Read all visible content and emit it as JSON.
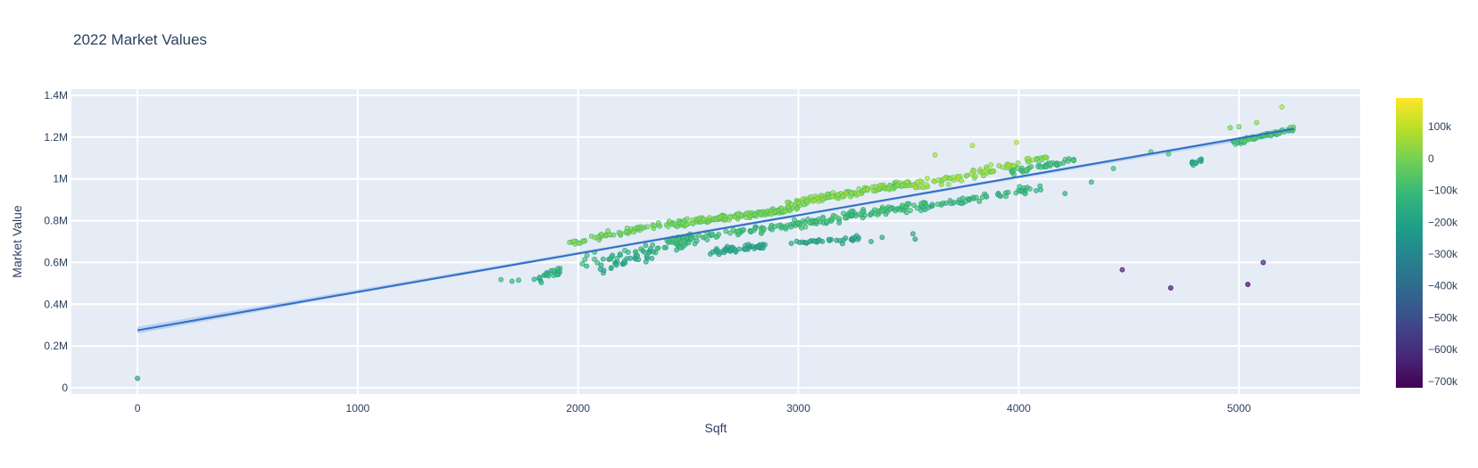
{
  "chart_data": {
    "type": "scatter",
    "title": "2022 Market Values",
    "xlabel": "Sqft",
    "ylabel": "Market Value",
    "xlim": [
      -300,
      5550
    ],
    "ylim": [
      -30000,
      1430000
    ],
    "x_ticks": [
      {
        "value": 0,
        "label": "0"
      },
      {
        "value": 1000,
        "label": "1000"
      },
      {
        "value": 2000,
        "label": "2000"
      },
      {
        "value": 3000,
        "label": "3000"
      },
      {
        "value": 4000,
        "label": "4000"
      },
      {
        "value": 5000,
        "label": "5000"
      }
    ],
    "y_ticks": [
      {
        "value": 0,
        "label": "0"
      },
      {
        "value": 200000,
        "label": "0.2M"
      },
      {
        "value": 400000,
        "label": "0.4M"
      },
      {
        "value": 600000,
        "label": "0.6M"
      },
      {
        "value": 800000,
        "label": "0.8M"
      },
      {
        "value": 1000000,
        "label": "1M"
      },
      {
        "value": 1200000,
        "label": "1.2M"
      },
      {
        "value": 1400000,
        "label": "1.4M"
      }
    ],
    "grid": true,
    "colorscale": "Viridis",
    "colorscale_stops": [
      "#440154",
      "#482878",
      "#3e4989",
      "#31688e",
      "#26828e",
      "#1f9e89",
      "#35b779",
      "#6ece58",
      "#b5de2b",
      "#fde725"
    ],
    "color_range": [
      -720000,
      190000
    ],
    "colorbar_ticks": [
      {
        "value": 100000,
        "label": "100k"
      },
      {
        "value": 0,
        "label": "0"
      },
      {
        "value": -100000,
        "label": "−100k"
      },
      {
        "value": -200000,
        "label": "−200k"
      },
      {
        "value": -300000,
        "label": "−300k"
      },
      {
        "value": -400000,
        "label": "−400k"
      },
      {
        "value": -500000,
        "label": "−500k"
      },
      {
        "value": -600000,
        "label": "−600k"
      },
      {
        "value": -700000,
        "label": "−700k"
      }
    ],
    "trendline": {
      "color": "#2f6fc4",
      "band_color": "#aec7ee",
      "x": [
        0,
        5250
      ],
      "y": [
        275000,
        1240000
      ],
      "band": [
        [
          0,
          260000,
          292000
        ],
        [
          1000,
          452000,
          470000
        ],
        [
          2000,
          637000,
          651000
        ],
        [
          3000,
          820000,
          832000
        ],
        [
          4000,
          1002000,
          1016000
        ],
        [
          5000,
          1180000,
          1200000
        ],
        [
          5250,
          1224000,
          1256000
        ]
      ]
    },
    "points": [
      {
        "x": 0,
        "y": 45000,
        "c": -160000
      },
      {
        "x": 4470,
        "y": 565000,
        "c": -590000
      },
      {
        "x": 4690,
        "y": 478000,
        "c": -650000
      },
      {
        "x": 5040,
        "y": 495000,
        "c": -690000
      },
      {
        "x": 5110,
        "y": 600000,
        "c": -600000
      },
      {
        "x": 5195,
        "y": 1345000,
        "c": 110000
      },
      {
        "x": 5080,
        "y": 1270000,
        "c": 60000
      },
      {
        "x": 4960,
        "y": 1245000,
        "c": 30000
      },
      {
        "x": 5000,
        "y": 1250000,
        "c": 40000
      },
      {
        "x": 3790,
        "y": 1160000,
        "c": 110000
      },
      {
        "x": 3990,
        "y": 1175000,
        "c": 120000
      },
      {
        "x": 3620,
        "y": 1115000,
        "c": 100000
      },
      {
        "x": 1650,
        "y": 518000,
        "c": -80000
      },
      {
        "x": 1700,
        "y": 510000,
        "c": -90000
      },
      {
        "x": 1730,
        "y": 515000,
        "c": -85000
      },
      {
        "x": 3520,
        "y": 737000,
        "c": -140000
      },
      {
        "x": 3530,
        "y": 712000,
        "c": -150000
      },
      {
        "x": 4430,
        "y": 1050000,
        "c": -80000
      },
      {
        "x": 4330,
        "y": 985000,
        "c": -110000
      },
      {
        "x": 4210,
        "y": 930000,
        "c": -120000
      },
      {
        "x": 4600,
        "y": 1130000,
        "c": -40000
      },
      {
        "x": 4680,
        "y": 1120000,
        "c": -50000
      },
      {
        "x": 3200,
        "y": 690000,
        "c": -140000
      },
      {
        "x": 3270,
        "y": 710000,
        "c": -150000
      },
      {
        "x": 3330,
        "y": 700000,
        "c": -140000
      },
      {
        "x": 3380,
        "y": 720000,
        "c": -130000
      }
    ],
    "clusters": [
      {
        "x": [
          1800,
          1920
        ],
        "yb": [
          510000,
          560000
        ],
        "ys": 35000,
        "cb": [
          -120000,
          -80000
        ],
        "n": 24
      },
      {
        "x": [
          1960,
          2400
        ],
        "yb": [
          690000,
          790000
        ],
        "ys": 25000,
        "cb": [
          10000,
          40000
        ],
        "n": 55
      },
      {
        "x": [
          2000,
          2550
        ],
        "yb": [
          600000,
          700000
        ],
        "ys": 45000,
        "cb": [
          -120000,
          -60000
        ],
        "n": 50
      },
      {
        "x": [
          2100,
          2350
        ],
        "yb": [
          560000,
          650000
        ],
        "ys": 40000,
        "cb": [
          -160000,
          -110000
        ],
        "n": 30
      },
      {
        "x": [
          2400,
          3000
        ],
        "yb": [
          780000,
          860000
        ],
        "ys": 20000,
        "cb": [
          10000,
          50000
        ],
        "n": 150
      },
      {
        "x": [
          2400,
          2950
        ],
        "yb": [
          700000,
          780000
        ],
        "ys": 30000,
        "cb": [
          -90000,
          -40000
        ],
        "n": 80
      },
      {
        "x": [
          2600,
          2850
        ],
        "yb": [
          650000,
          680000
        ],
        "ys": 20000,
        "cb": [
          -170000,
          -120000
        ],
        "n": 50
      },
      {
        "x": [
          2950,
          3500
        ],
        "yb": [
          880000,
          980000
        ],
        "ys": 22000,
        "cb": [
          30000,
          80000
        ],
        "n": 150
      },
      {
        "x": [
          2950,
          3600
        ],
        "yb": [
          780000,
          880000
        ],
        "ys": 30000,
        "cb": [
          -100000,
          -40000
        ],
        "n": 120
      },
      {
        "x": [
          2950,
          3300
        ],
        "yb": [
          690000,
          720000
        ],
        "ys": 15000,
        "cb": [
          -170000,
          -130000
        ],
        "n": 30
      },
      {
        "x": [
          3500,
          4000
        ],
        "yb": [
          960000,
          1070000
        ],
        "ys": 30000,
        "cb": [
          40000,
          100000
        ],
        "n": 70
      },
      {
        "x": [
          3550,
          4100
        ],
        "yb": [
          860000,
          960000
        ],
        "ys": 25000,
        "cb": [
          -120000,
          -70000
        ],
        "n": 55
      },
      {
        "x": [
          3950,
          4250
        ],
        "yb": [
          1030000,
          1090000
        ],
        "ys": 20000,
        "cb": [
          -90000,
          -30000
        ],
        "n": 45
      },
      {
        "x": [
          4000,
          4150
        ],
        "yb": [
          1080000,
          1110000
        ],
        "ys": 15000,
        "cb": [
          30000,
          80000
        ],
        "n": 15
      },
      {
        "x": [
          4780,
          4830
        ],
        "yb": [
          1070000,
          1090000
        ],
        "ys": 10000,
        "cb": [
          -150000,
          -110000
        ],
        "n": 12
      },
      {
        "x": [
          4960,
          5250
        ],
        "yb": [
          1170000,
          1240000
        ],
        "ys": 15000,
        "cb": [
          -80000,
          0
        ],
        "n": 60
      }
    ]
  }
}
